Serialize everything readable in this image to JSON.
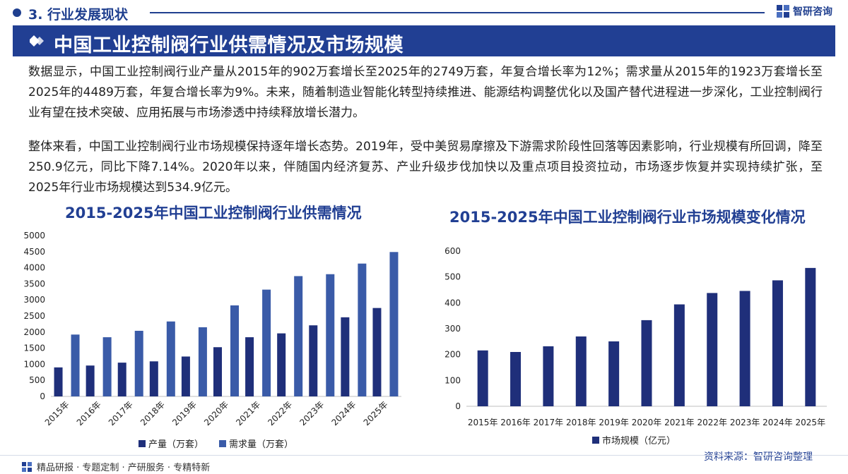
{
  "header": {
    "section": "3. 行业发展现状",
    "brand": "智研咨询",
    "title": "中国工业控制阀行业供需情况及市场规模"
  },
  "paragraphs": [
    "数据显示，中国工业控制阀行业产量从2015年的902万套增长至2025年的2749万套，年复合增长率为12%；需求量从2015年的1923万套增长至2025年的4489万套，年复合增长率为9%。未来，随着制造业智能化转型持续推进、能源结构调整优化以及国产替代进程进一步深化，工业控制阀行业有望在技术突破、应用拓展与市场渗透中持续释放增长潜力。",
    "整体来看，中国工业控制阀行业市场规模保持逐年增长态势。2019年，受中美贸易摩擦及下游需求阶段性回落等因素影响，行业规模有所回调，降至250.9亿元，同比下降7.14%。2020年以来，伴随国内经济复苏、产业升级步伐加快以及重点项目投资拉动，市场逐步恢复并实现持续扩张，至2025年行业市场规模达到534.9亿元。"
  ],
  "chart_data": [
    {
      "type": "bar",
      "title": "2015-2025年中国工业控制阀行业供需情况",
      "categories": [
        "2015年",
        "2016年",
        "2017年",
        "2018年",
        "2019年",
        "2020年",
        "2021年",
        "2022年",
        "2023年",
        "2024年",
        "2025年"
      ],
      "series": [
        {
          "name": "产量（万套）",
          "color": "#1f2f7a",
          "values": [
            902,
            960,
            1050,
            1090,
            1240,
            1530,
            1840,
            1960,
            2210,
            2460,
            2749
          ]
        },
        {
          "name": "需求量（万套）",
          "color": "#3a5ba8",
          "values": [
            1923,
            1840,
            2040,
            2330,
            2150,
            2830,
            3320,
            3740,
            3800,
            4130,
            4489
          ]
        }
      ],
      "ylim": [
        0,
        5000
      ],
      "yticks": [
        0,
        500,
        1000,
        1500,
        2000,
        2500,
        3000,
        3500,
        4000,
        4500,
        5000
      ],
      "xlabel": "",
      "ylabel": "",
      "legend": "bottom"
    },
    {
      "type": "bar",
      "title": "2015-2025年中国工业控制阀行业市场规模变化情况",
      "categories": [
        "2015年",
        "2016年",
        "2017年",
        "2018年",
        "2019年",
        "2020年",
        "2021年",
        "2022年",
        "2023年",
        "2024年",
        "2025年"
      ],
      "series": [
        {
          "name": "市场规模（亿元）",
          "color": "#1f2f7a",
          "values": [
            216,
            210,
            232,
            270,
            250.9,
            333,
            394,
            438,
            446,
            487,
            534.9
          ]
        }
      ],
      "ylim": [
        0,
        600
      ],
      "yticks": [
        0,
        100,
        200,
        300,
        400,
        500,
        600
      ],
      "xlabel": "",
      "ylabel": "",
      "legend": "bottom"
    }
  ],
  "source": "资料来源：智研咨询整理",
  "footer": "精品研报 · 专题定制 · 产研服务 · 专精特新"
}
